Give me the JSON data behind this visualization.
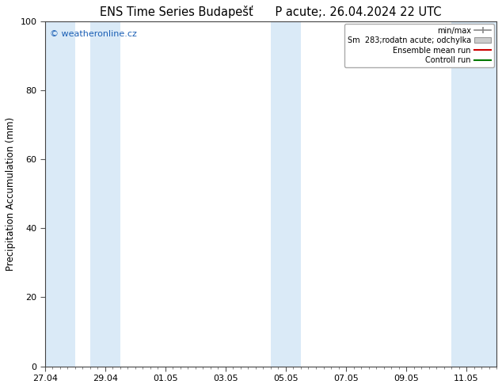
{
  "title": "ENS Time Series Budapešť      P acute;. 26.04.2024 22 UTC",
  "ylabel": "Precipitation Accumulation (mm)",
  "ylim": [
    0,
    100
  ],
  "yticks": [
    0,
    20,
    40,
    60,
    80,
    100
  ],
  "xlim_start": 0.0,
  "xlim_end": 15.0,
  "xtick_labels": [
    "27.04",
    "29.04",
    "01.05",
    "03.05",
    "05.05",
    "07.05",
    "09.05",
    "11.05"
  ],
  "xtick_positions": [
    0,
    2,
    4,
    6,
    8,
    10,
    12,
    14
  ],
  "shaded_bands": [
    [
      0.0,
      1.0
    ],
    [
      1.5,
      2.5
    ],
    [
      7.5,
      8.5
    ],
    [
      13.5,
      15.0
    ]
  ],
  "shade_color": "#daeaf7",
  "bg_color": "#ffffff",
  "plot_bg_color": "#ffffff",
  "watermark": "© weatheronline.cz",
  "watermark_color": "#1a5fb5",
  "title_fontsize": 10.5,
  "axis_fontsize": 8.5,
  "tick_fontsize": 8
}
